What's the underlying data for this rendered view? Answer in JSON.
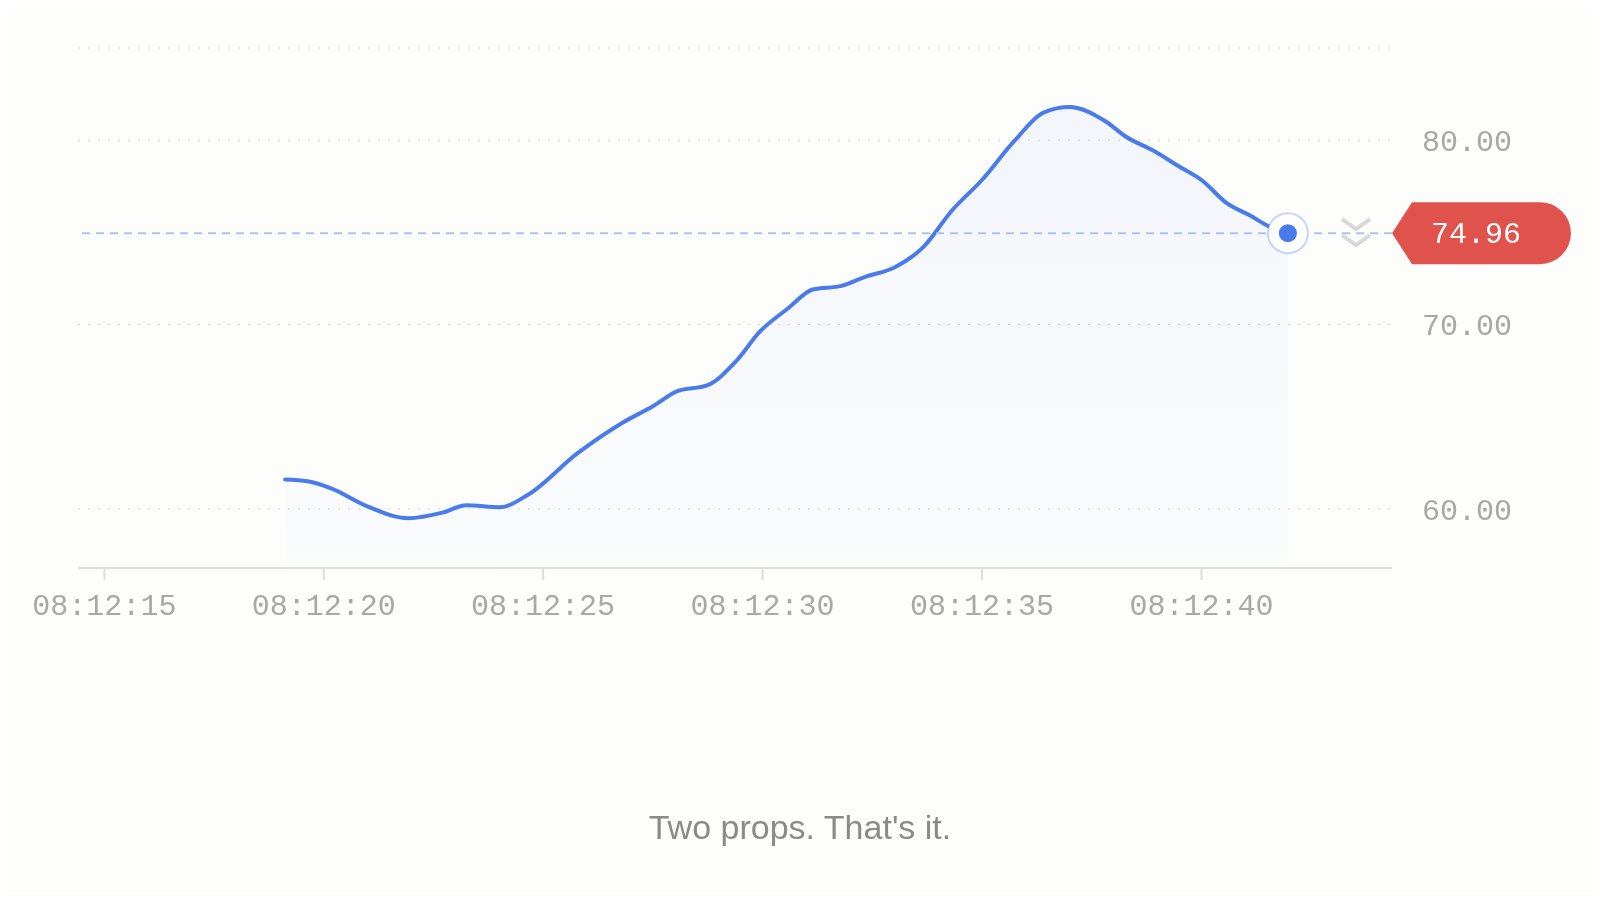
{
  "chart_data": {
    "type": "area",
    "x": [
      8.205311,
      8.205453,
      8.205606,
      8.205817,
      8.206092,
      8.206306,
      8.206458,
      8.206669,
      8.206853,
      8.207158,
      8.207431,
      8.207644,
      8.207797,
      8.207981,
      8.208164,
      8.208314,
      8.208497,
      8.20865,
      8.208833,
      8.208986,
      8.209167,
      8.20935,
      8.209533,
      8.209717,
      8.209931,
      8.210111,
      8.210275,
      8.210508,
      8.210631,
      8.210814,
      8.210964,
      8.211117,
      8.211269,
      8.211422,
      8.211544,
      8.211658
    ],
    "series": [
      {
        "color": "#4a7bea",
        "values": [
          61.6,
          61.5,
          61.1,
          60.2,
          59.5,
          59.8,
          60.2,
          60.1,
          60.8,
          63.0,
          64.6,
          65.6,
          66.4,
          66.7,
          68.0,
          69.6,
          70.9,
          71.9,
          72.1,
          72.6,
          73.1,
          74.2,
          76.2,
          77.8,
          80.0,
          81.5,
          81.8,
          81.0,
          80.2,
          79.4,
          78.6,
          77.8,
          76.6,
          75.9,
          75.3,
          74.96
        ]
      }
    ],
    "xlim": [
      8.204,
      8.212317
    ],
    "xticks": [
      {
        "value": 8.204167,
        "label": "08:12:15"
      },
      {
        "value": 8.205556,
        "label": "08:12:20"
      },
      {
        "value": 8.206944,
        "label": "08:12:25"
      },
      {
        "value": 8.208333,
        "label": "08:12:30"
      },
      {
        "value": 8.209722,
        "label": "08:12:35"
      },
      {
        "value": 8.211111,
        "label": "08:12:40"
      }
    ],
    "ylim": [
      56.8,
      85
    ],
    "yticks": [
      {
        "value": 60,
        "label": "60.00"
      },
      {
        "value": 70,
        "label": "70.00"
      },
      {
        "value": 80,
        "label": "80.00"
      }
    ],
    "grid": "y",
    "ref_lines": [
      {
        "axis": "y",
        "value": 74.96,
        "label": "74.96",
        "color": "#aac2f3",
        "line_style": "dashed"
      }
    ],
    "annotations": [
      "Two props. That's it."
    ]
  }
}
